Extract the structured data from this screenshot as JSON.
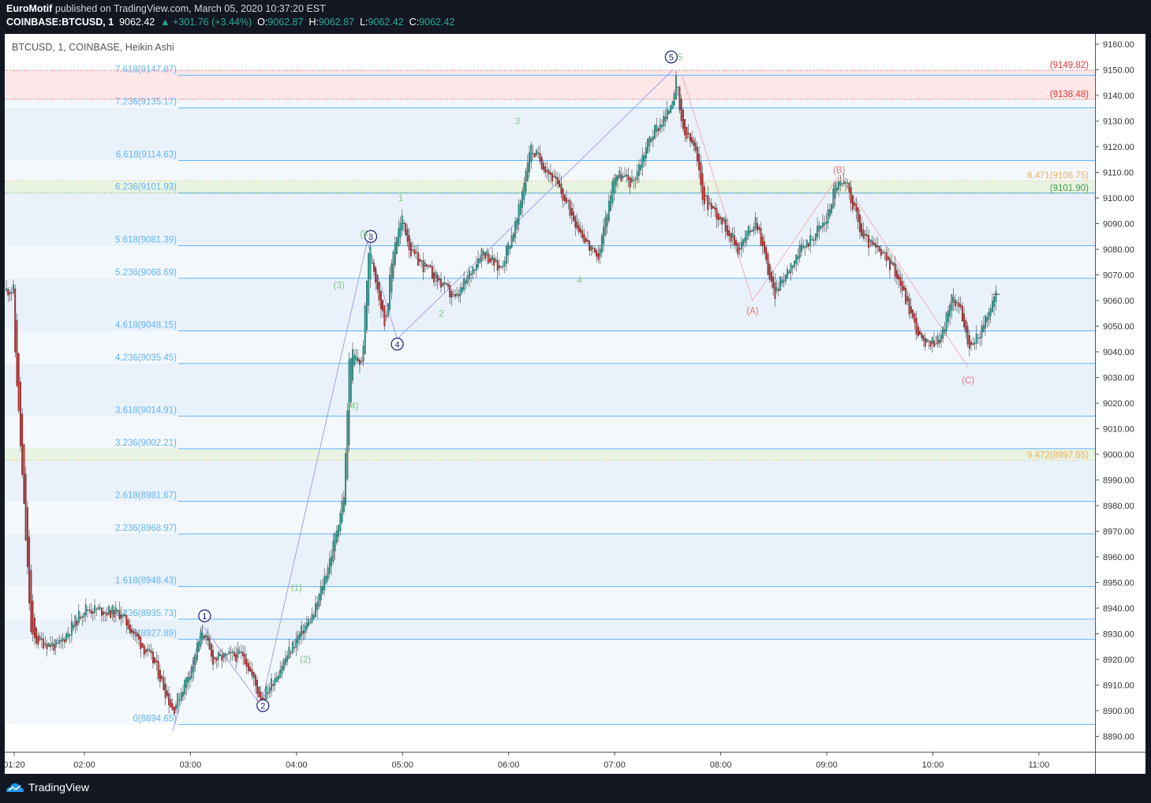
{
  "header": {
    "author": "EuroMotif",
    "published_text": "published on TradingView.com, March 05, 2020 10:37:20 EST",
    "symbol": "COINBASE:BTCUSD, 1",
    "last": "9062.42",
    "change": "+301.76 (+3.44%)",
    "o_label": "O:",
    "o_value": "9062.87",
    "h_label": "H:",
    "h_value": "9062.87",
    "l_label": "L:",
    "l_value": "9062.42",
    "c_label": "C:",
    "c_value": "9062.42"
  },
  "chart_title": "BTCUSD, 1, COINBASE, Heikin Ashi",
  "footer": {
    "brand": "TradingView"
  },
  "colors": {
    "up": "#26a69a",
    "down": "#e64a4a",
    "fib": "#64b5f6",
    "accent": "#1a1a7a"
  },
  "chart_data": {
    "type": "candlestick",
    "ylim": [
      8884,
      9164
    ],
    "yticks": [
      "9160.00",
      "9150.00",
      "9140.00",
      "9130.00",
      "9120.00",
      "9110.00",
      "9100.00",
      "9090.00",
      "9080.00",
      "9070.00",
      "9060.00",
      "9050.00",
      "9040.00",
      "9030.00",
      "9020.00",
      "9010.00",
      "9000.00",
      "8990.00",
      "8980.00",
      "8970.00",
      "8960.00",
      "8950.00",
      "8940.00",
      "8930.00",
      "8920.00",
      "8910.00",
      "8900.00",
      "8890.00"
    ],
    "xticks": [
      "01:20",
      "02:00",
      "03:00",
      "04:00",
      "05:00",
      "06:00",
      "07:00",
      "08:00",
      "09:00",
      "10:00",
      "11:00"
    ],
    "fib_levels": [
      {
        "label": "0(8894.65)",
        "value": 8894.65
      },
      {
        "label": "1(8927.89)",
        "value": 8927.89
      },
      {
        "label": "1.236(8935.73)",
        "value": 8935.73
      },
      {
        "label": "1.618(8948.43)",
        "value": 8948.43
      },
      {
        "label": "2.236(8968.97)",
        "value": 8968.97
      },
      {
        "label": "2.618(8981.67)",
        "value": 8981.67
      },
      {
        "label": "3.236(9002.21)",
        "value": 9002.21
      },
      {
        "label": "3.618(9014.91)",
        "value": 9014.91
      },
      {
        "label": "4.236(9035.45)",
        "value": 9035.45
      },
      {
        "label": "4.618(9048.15)",
        "value": 9048.15
      },
      {
        "label": "5.236(9068.69)",
        "value": 9068.69
      },
      {
        "label": "5.618(9081.39)",
        "value": 9081.39
      },
      {
        "label": "6.236(9101.93)",
        "value": 9101.93
      },
      {
        "label": "6.618(9114.63)",
        "value": 9114.63
      },
      {
        "label": "7.236(9135.17)",
        "value": 9135.17
      },
      {
        "label": "7.618(9147.87)",
        "value": 9147.87
      }
    ],
    "right_labels": [
      {
        "text": "(9149.82)",
        "value": 9149.82,
        "color": "#e53935"
      },
      {
        "text": "(9138.48)",
        "value": 9138.48,
        "color": "#e53935"
      },
      {
        "text": "8.471(9106.75)",
        "value": 9106.75,
        "color": "#f0b060"
      },
      {
        "text": "(9101.90)",
        "value": 9101.9,
        "color": "#43a047"
      },
      {
        "text": "9.472(8997.65)",
        "value": 8997.65,
        "color": "#f0b060"
      }
    ],
    "price_path": [
      [
        "01:20",
        9050
      ],
      [
        "01:30",
        8928
      ],
      [
        "01:45",
        8925
      ],
      [
        "02:00",
        8940
      ],
      [
        "02:20",
        8938
      ],
      [
        "02:40",
        8918
      ],
      [
        "02:50",
        8900
      ],
      [
        "03:00",
        8916
      ],
      [
        "03:07",
        8932
      ],
      [
        "03:12",
        8920
      ],
      [
        "03:30",
        8922
      ],
      [
        "03:40",
        8904
      ],
      [
        "03:50",
        8916
      ],
      [
        "04:00",
        8928
      ],
      [
        "04:10",
        8938
      ],
      [
        "04:20",
        8962
      ],
      [
        "04:27",
        8985
      ],
      [
        "04:30",
        9040
      ],
      [
        "04:37",
        9035
      ],
      [
        "04:41",
        9082
      ],
      [
        "04:45",
        9068
      ],
      [
        "04:50",
        9050
      ],
      [
        "04:55",
        9082
      ],
      [
        "05:00",
        9092
      ],
      [
        "05:05",
        9078
      ],
      [
        "05:20",
        9068
      ],
      [
        "05:30",
        9060
      ],
      [
        "05:45",
        9080
      ],
      [
        "05:55",
        9072
      ],
      [
        "06:05",
        9092
      ],
      [
        "06:12",
        9120
      ],
      [
        "06:25",
        9108
      ],
      [
        "06:40",
        9088
      ],
      [
        "06:50",
        9075
      ],
      [
        "07:00",
        9110
      ],
      [
        "07:10",
        9106
      ],
      [
        "07:20",
        9124
      ],
      [
        "07:30",
        9133
      ],
      [
        "07:35",
        9146
      ],
      [
        "07:38",
        9126
      ],
      [
        "07:45",
        9120
      ],
      [
        "07:50",
        9100
      ],
      [
        "08:00",
        9092
      ],
      [
        "08:10",
        9080
      ],
      [
        "08:20",
        9092
      ],
      [
        "08:30",
        9062
      ],
      [
        "08:40",
        9075
      ],
      [
        "09:00",
        9092
      ],
      [
        "09:05",
        9106
      ],
      [
        "09:12",
        9104
      ],
      [
        "09:20",
        9085
      ],
      [
        "09:35",
        9075
      ],
      [
        "09:40",
        9070
      ],
      [
        "09:50",
        9050
      ],
      [
        "09:55",
        9042
      ],
      [
        "10:05",
        9046
      ],
      [
        "10:10",
        9060
      ],
      [
        "10:15",
        9060
      ],
      [
        "10:20",
        9040
      ],
      [
        "10:30",
        9052
      ],
      [
        "10:36",
        9064
      ]
    ],
    "wave_labels": [
      {
        "text": "1",
        "circled": true,
        "x": "03:08",
        "y": 8937,
        "color": "#1a1a7a"
      },
      {
        "text": "2",
        "circled": true,
        "x": "03:41",
        "y": 8902,
        "color": "#1a1a7a"
      },
      {
        "text": "3",
        "circled": true,
        "x": "04:42",
        "y": 9085,
        "color": "#1a1a7a"
      },
      {
        "text": "4",
        "circled": true,
        "x": "04:57",
        "y": 9043,
        "color": "#1a1a7a"
      },
      {
        "text": "5",
        "circled": true,
        "x": "07:32",
        "y": 9155,
        "color": "#1a1a7a"
      },
      {
        "text": "(1)",
        "x": "04:00",
        "y": 8948,
        "color": "#81c784"
      },
      {
        "text": "(2)",
        "x": "04:05",
        "y": 8920,
        "color": "#81c784"
      },
      {
        "text": "(3)",
        "x": "04:24",
        "y": 9066,
        "color": "#81c784"
      },
      {
        "text": "(4)",
        "x": "04:32",
        "y": 9019,
        "color": "#81c784"
      },
      {
        "text": "(5)",
        "x": "04:39",
        "y": 9086,
        "color": "#81c784"
      },
      {
        "text": "1",
        "x": "04:59",
        "y": 9100,
        "color": "#81c784"
      },
      {
        "text": "2",
        "x": "05:22",
        "y": 9055,
        "color": "#81c784"
      },
      {
        "text": "3",
        "x": "06:05",
        "y": 9130,
        "color": "#81c784"
      },
      {
        "text": "4",
        "x": "06:40",
        "y": 9068,
        "color": "#81c784"
      },
      {
        "text": "5",
        "x": "07:37",
        "y": 9155,
        "color": "#81c784"
      },
      {
        "text": "(A)",
        "x": "08:18",
        "y": 9056,
        "color": "#e57373"
      },
      {
        "text": "(B)",
        "x": "09:07",
        "y": 9111,
        "color": "#e57373"
      },
      {
        "text": "(C)",
        "x": "10:20",
        "y": 9029,
        "color": "#e57373"
      }
    ],
    "impulse_path": [
      [
        "02:50",
        8892
      ],
      [
        "03:07",
        8933
      ],
      [
        "03:40",
        8902
      ],
      [
        "04:40",
        9083
      ],
      [
        "04:57",
        9045
      ],
      [
        "07:33",
        9150
      ]
    ],
    "correction_path": [
      [
        "07:38",
        9148
      ],
      [
        "08:18",
        9060
      ],
      [
        "09:07",
        9109
      ],
      [
        "10:20",
        9034
      ]
    ],
    "grid": false
  }
}
